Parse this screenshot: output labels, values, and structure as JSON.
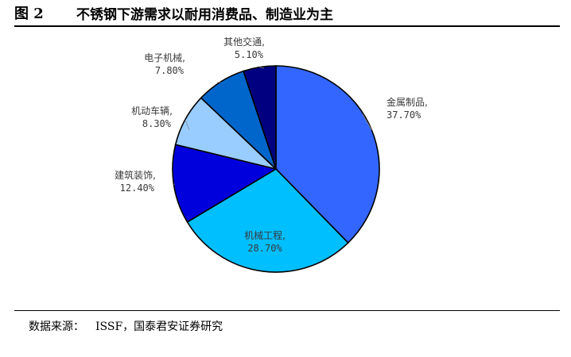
{
  "figure": {
    "label": "图 2",
    "title": "不锈钢下游需求以耐用消费品、制造业为主"
  },
  "source": {
    "label": "数据来源：",
    "text": "ISSF，国泰君安证券研究"
  },
  "chart_data": {
    "type": "pie",
    "title": "",
    "categories": [
      "金属制品",
      "机械工程",
      "建筑装饰",
      "机动车辆",
      "电子机械",
      "其他交通"
    ],
    "values": [
      37.7,
      28.7,
      12.4,
      8.3,
      7.8,
      5.1
    ],
    "value_labels": [
      "37.70%",
      "28.70%",
      "12.40%",
      "8.30%",
      "7.80%",
      "5.10%"
    ],
    "colors": [
      "#3366FF",
      "#00BFFF",
      "#0000DD",
      "#99CCFF",
      "#0066CC",
      "#000080"
    ],
    "start": "12 o'clock",
    "direction": "clockwise",
    "legend": "none"
  }
}
